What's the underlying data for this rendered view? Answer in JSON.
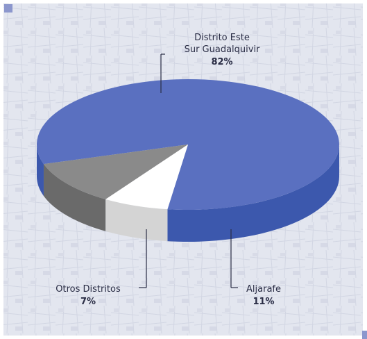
{
  "chart_data": {
    "type": "pie",
    "title": "",
    "slices": [
      {
        "label_lines": [
          "Distrito Este",
          "Sur Guadalquivir"
        ],
        "value": 82,
        "value_label": "82%",
        "color": "#5a70c0",
        "side_color": "#3c58ad"
      },
      {
        "label_lines": [
          "Aljarafe"
        ],
        "value": 11,
        "value_label": "11%",
        "color": "#8a8a8a",
        "side_color": "#6a6a6a"
      },
      {
        "label_lines": [
          "Otros Distritos"
        ],
        "value": 7,
        "value_label": "7%",
        "color": "#ffffff",
        "side_color": "#d4d4d4"
      }
    ]
  },
  "colors": {
    "background": "#e4e7f0",
    "border": "#ffffff",
    "accent_square": "#8c97cd"
  }
}
